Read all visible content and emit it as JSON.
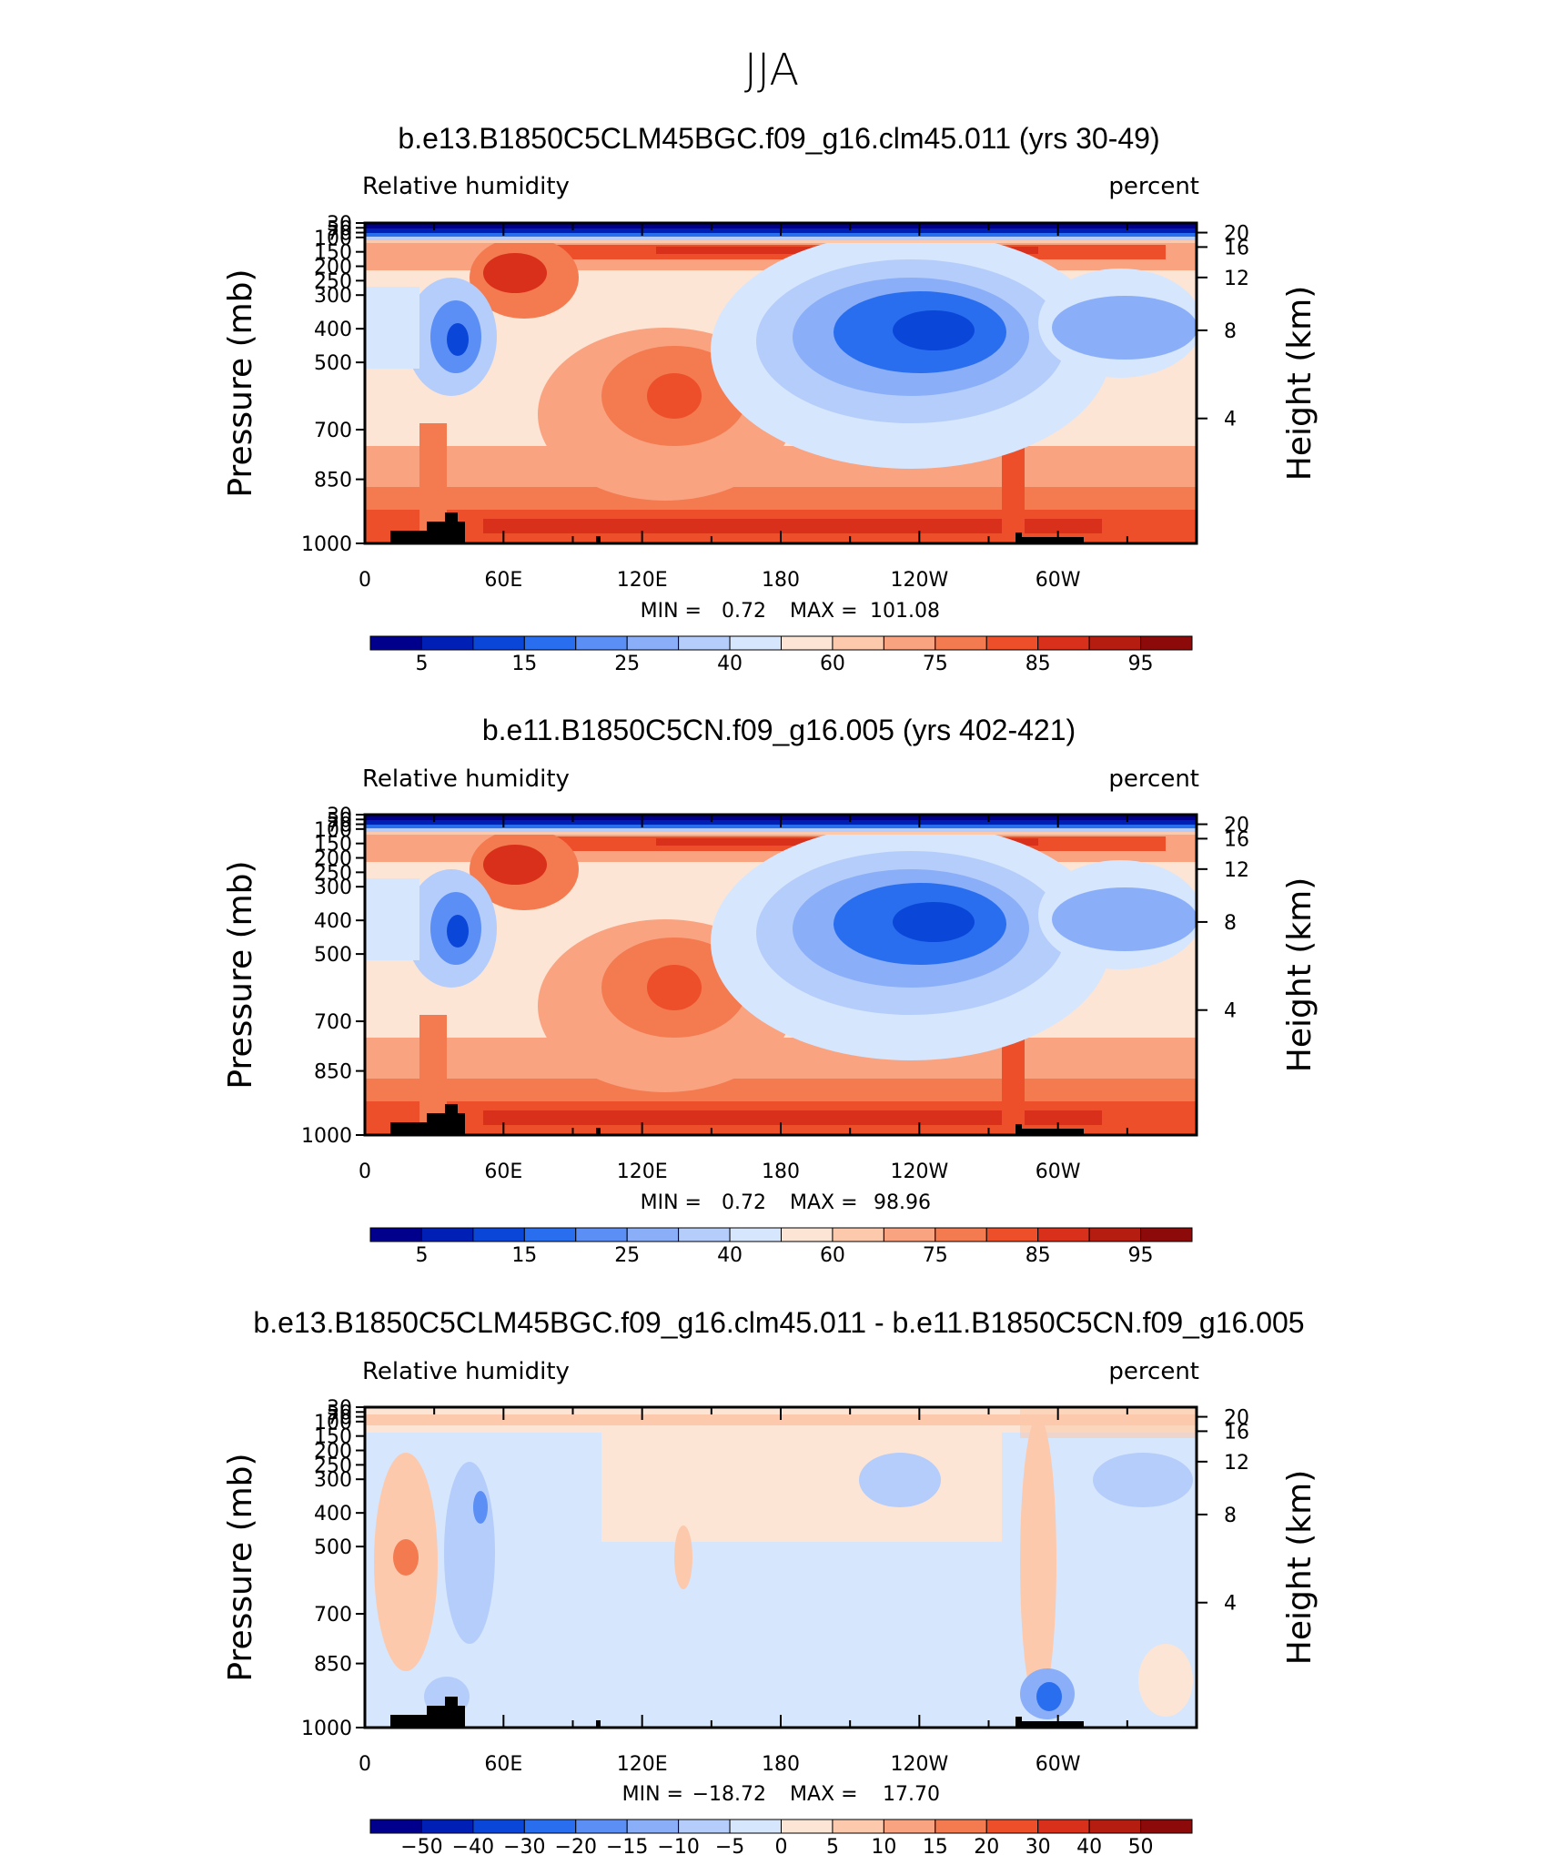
{
  "figure_title": "JJA",
  "chart_data": [
    {
      "type": "contour",
      "title": "b.e13.B1850C5CLM45BGC.f09_g16.clm45.011 (yrs 30-49)",
      "left_label": "Relative humidity",
      "right_label": "percent",
      "ylabel": "Pressure (mb)",
      "ylabel_right": "Height (km)",
      "x_ticks": [
        "0",
        "60E",
        "120E",
        "180",
        "120W",
        "60W"
      ],
      "y_ticks": [
        "30",
        "50",
        "70",
        "100",
        "150",
        "200",
        "250",
        "300",
        "400",
        "500",
        "700",
        "850",
        "1000"
      ],
      "height_ticks": [
        "20",
        "16",
        "12",
        "8",
        "4"
      ],
      "min": "0.72",
      "max": "101.08",
      "min_label": "MIN =",
      "max_label": "MAX =",
      "colorbar_labels": [
        "5",
        "15",
        "25",
        "40",
        "60",
        "75",
        "85",
        "95"
      ]
    },
    {
      "type": "contour",
      "title": "b.e11.B1850C5CN.f09_g16.005 (yrs 402-421)",
      "left_label": "Relative humidity",
      "right_label": "percent",
      "ylabel": "Pressure (mb)",
      "ylabel_right": "Height (km)",
      "x_ticks": [
        "0",
        "60E",
        "120E",
        "180",
        "120W",
        "60W"
      ],
      "y_ticks": [
        "30",
        "50",
        "70",
        "100",
        "150",
        "200",
        "250",
        "300",
        "400",
        "500",
        "700",
        "850",
        "1000"
      ],
      "height_ticks": [
        "20",
        "16",
        "12",
        "8",
        "4"
      ],
      "min": "0.72",
      "max": "98.96",
      "min_label": "MIN =",
      "max_label": "MAX =",
      "colorbar_labels": [
        "5",
        "15",
        "25",
        "40",
        "60",
        "75",
        "85",
        "95"
      ]
    },
    {
      "type": "contour",
      "title": "b.e13.B1850C5CLM45BGC.f09_g16.clm45.011 - b.e11.B1850C5CN.f09_g16.005",
      "left_label": "Relative humidity",
      "right_label": "percent",
      "ylabel": "Pressure (mb)",
      "ylabel_right": "Height (km)",
      "x_ticks": [
        "0",
        "60E",
        "120E",
        "180",
        "120W",
        "60W"
      ],
      "y_ticks": [
        "30",
        "50",
        "70",
        "100",
        "150",
        "200",
        "250",
        "300",
        "400",
        "500",
        "700",
        "850",
        "1000"
      ],
      "height_ticks": [
        "20",
        "16",
        "12",
        "8",
        "4"
      ],
      "min": "−18.72",
      "max": "17.70",
      "min_label": "MIN =",
      "max_label": "MAX =",
      "colorbar_labels": [
        "−50",
        "−40",
        "−30",
        "−20",
        "−15",
        "−10",
        "−5",
        "0",
        "5",
        "10",
        "15",
        "20",
        "30",
        "40",
        "50"
      ]
    }
  ],
  "colors": {
    "levels": [
      "#00008c",
      "#0020b5",
      "#0a47d9",
      "#2a6ef0",
      "#5b8ff5",
      "#8aaef8",
      "#b5cdfa",
      "#d6e6fd",
      "#fde5d5",
      "#fcc9ad",
      "#f9a380",
      "#f47a50",
      "#ec4f2a",
      "#d8301a",
      "#b51d10",
      "#8c0a0a"
    ]
  }
}
